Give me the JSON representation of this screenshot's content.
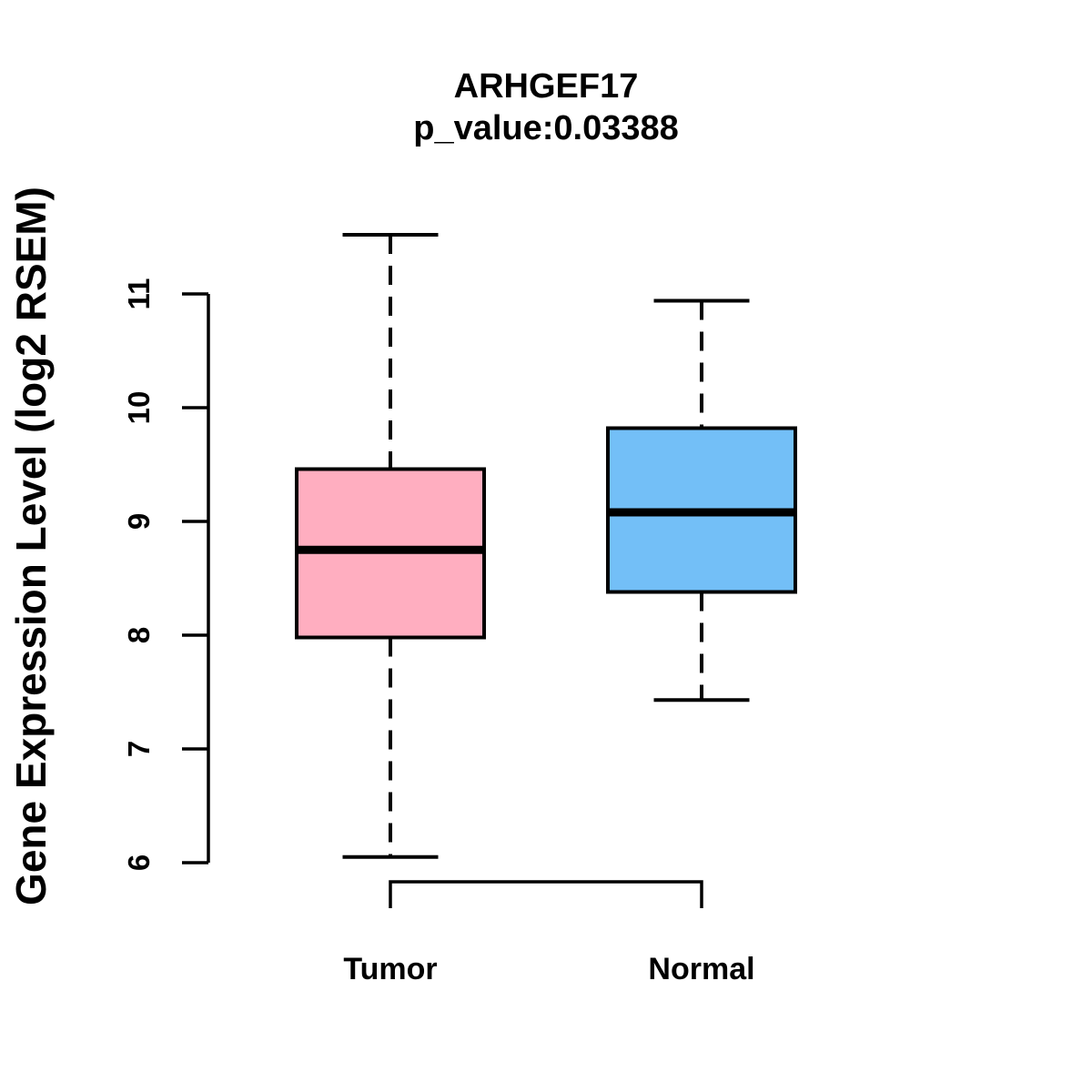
{
  "chart_data": {
    "type": "boxplot",
    "title": "ARHGEF17",
    "subtitle": "p_value:0.03388",
    "p_value": "0.03388",
    "gene": "ARHGEF17",
    "ylabel": "Gene Expression Level (log2 RSEM)",
    "ylim": [
      6,
      11.6
    ],
    "yticks": [
      6,
      7,
      8,
      9,
      10,
      11
    ],
    "grid": false,
    "legend": "none",
    "categories": [
      "Tumor",
      "Normal"
    ],
    "series": [
      {
        "name": "Tumor",
        "lower_whisker": 6.05,
        "q1": 7.98,
        "median": 8.75,
        "q3": 9.46,
        "upper_whisker": 11.52,
        "fill": "#FFAEC0",
        "stroke": "#000000"
      },
      {
        "name": "Normal",
        "lower_whisker": 7.43,
        "q1": 8.38,
        "median": 9.08,
        "q3": 9.82,
        "upper_whisker": 10.94,
        "fill": "#73BFF7",
        "stroke": "#000000"
      }
    ],
    "comparison_bracket": {
      "from": "Tumor",
      "to": "Normal"
    },
    "colors": {
      "axis": "#000000",
      "text": "#000000",
      "background": "#ffffff"
    }
  }
}
